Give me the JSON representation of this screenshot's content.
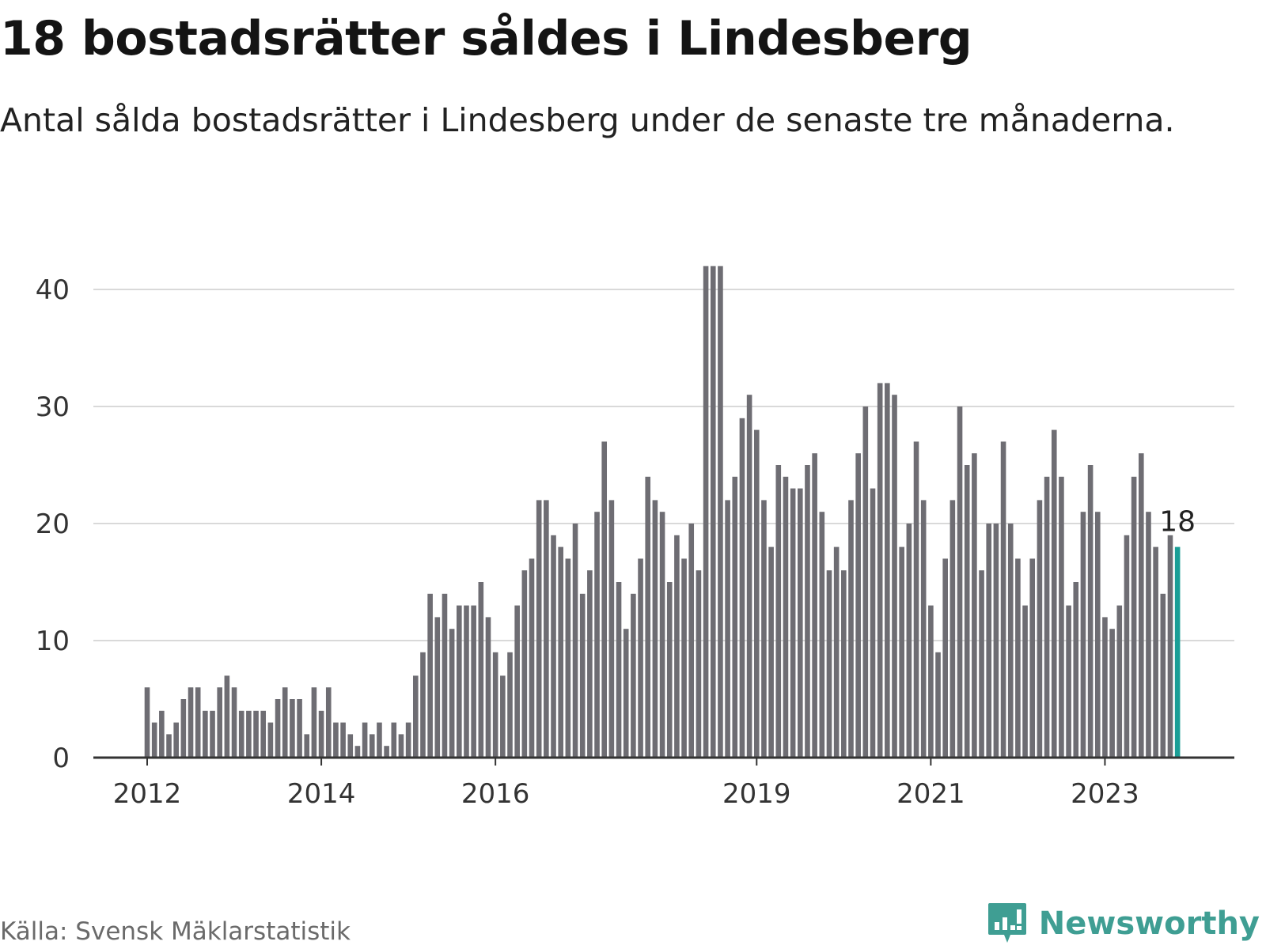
{
  "title": "18 bostadsrätter såldes i Lindesberg",
  "subtitle": "Antal sålda bostadsrätter i Lindesberg under de senaste tre månaderna.",
  "source": "Källa: Svensk Mäklarstatistik",
  "brand": "Newsworthy",
  "colors": {
    "bar": "#6e6d73",
    "highlight": "#1a9e96",
    "grid": "#d9d9d9",
    "brand": "#3f9e93"
  },
  "chart_data": {
    "type": "bar",
    "title": "18 bostadsrätter såldes i Lindesberg",
    "subtitle": "Antal sålda bostadsrätter i Lindesberg under de senaste tre månaderna.",
    "xlabel": "",
    "ylabel": "",
    "ylim": [
      0,
      43
    ],
    "yticks": [
      0,
      10,
      20,
      30,
      40
    ],
    "grid": true,
    "x_ticks": [
      {
        "label": "2012",
        "index": 0
      },
      {
        "label": "2014",
        "index": 24
      },
      {
        "label": "2016",
        "index": 48
      },
      {
        "label": "2019",
        "index": 84
      },
      {
        "label": "2021",
        "index": 108
      },
      {
        "label": "2023",
        "index": 132
      }
    ],
    "highlight_label": "18",
    "values": [
      6,
      3,
      4,
      2,
      3,
      5,
      6,
      6,
      4,
      4,
      6,
      7,
      6,
      4,
      4,
      4,
      4,
      3,
      5,
      6,
      5,
      5,
      2,
      6,
      4,
      6,
      3,
      3,
      2,
      1,
      3,
      2,
      3,
      1,
      3,
      2,
      3,
      7,
      9,
      14,
      12,
      14,
      11,
      13,
      13,
      13,
      15,
      12,
      9,
      7,
      9,
      13,
      16,
      17,
      22,
      22,
      19,
      18,
      17,
      20,
      14,
      16,
      21,
      27,
      22,
      15,
      11,
      14,
      17,
      24,
      22,
      21,
      15,
      19,
      17,
      20,
      16,
      42,
      42,
      42,
      22,
      24,
      29,
      31,
      28,
      22,
      18,
      25,
      24,
      23,
      23,
      25,
      26,
      21,
      16,
      18,
      16,
      22,
      26,
      30,
      23,
      32,
      32,
      31,
      18,
      20,
      27,
      22,
      13,
      9,
      17,
      22,
      30,
      25,
      26,
      16,
      20,
      20,
      27,
      20,
      17,
      13,
      17,
      22,
      24,
      28,
      24,
      13,
      15,
      21,
      25,
      21,
      12,
      11,
      13,
      19,
      24,
      26,
      21,
      18,
      14,
      19,
      18
    ]
  }
}
